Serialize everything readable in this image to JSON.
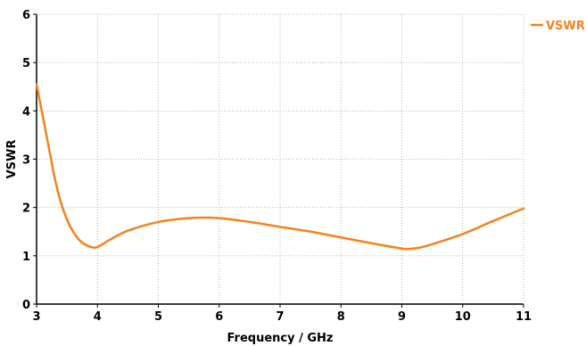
{
  "chart_data": {
    "type": "line",
    "xlabel": "Frequency / GHz",
    "ylabel": "VSWR",
    "xlim": [
      3,
      11
    ],
    "ylim": [
      0,
      6
    ],
    "xticks": [
      "3",
      "4",
      "5",
      "6",
      "7",
      "8",
      "9",
      "10",
      "11"
    ],
    "yticks": [
      "0",
      "1",
      "2",
      "3",
      "4",
      "5",
      "6"
    ],
    "grid": true,
    "legend_position": "top-right",
    "series": [
      {
        "name": "VSWR",
        "color": "#F5821F",
        "x": [
          3.0,
          3.1,
          3.2,
          3.3,
          3.4,
          3.5,
          3.6,
          3.7,
          3.8,
          3.9,
          4.0,
          4.2,
          4.5,
          5.0,
          5.5,
          6.0,
          6.5,
          7.0,
          7.5,
          8.0,
          8.5,
          9.0,
          9.1,
          9.3,
          9.5,
          10.0,
          10.5,
          11.0
        ],
        "values": [
          4.55,
          3.9,
          3.25,
          2.6,
          2.1,
          1.75,
          1.5,
          1.33,
          1.23,
          1.18,
          1.18,
          1.33,
          1.52,
          1.7,
          1.78,
          1.78,
          1.7,
          1.6,
          1.5,
          1.38,
          1.26,
          1.15,
          1.14,
          1.17,
          1.24,
          1.45,
          1.72,
          1.98
        ]
      }
    ]
  }
}
